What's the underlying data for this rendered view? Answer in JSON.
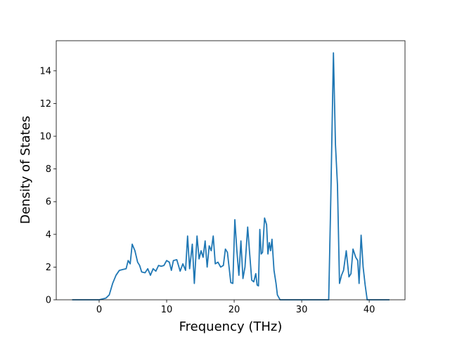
{
  "chart_data": {
    "type": "line",
    "xlabel": "Frequency (THz)",
    "ylabel": "Density of States",
    "xlim": [
      -6.35,
      45.3
    ],
    "ylim": [
      0,
      15.84
    ],
    "xticks": [
      0,
      10,
      20,
      30,
      40
    ],
    "yticks": [
      0,
      2,
      4,
      6,
      8,
      10,
      12,
      14
    ],
    "color": "#1f77b4",
    "x": [
      -4,
      0,
      1,
      1.5,
      2,
      2.5,
      3,
      3.5,
      4,
      4.3,
      4.6,
      4.9,
      5.3,
      5.7,
      6,
      6.3,
      6.8,
      7.2,
      7.6,
      8,
      8.4,
      8.8,
      9.2,
      9.6,
      10,
      10.4,
      10.7,
      11,
      11.5,
      12,
      12.4,
      12.8,
      13.1,
      13.4,
      13.8,
      14.1,
      14.5,
      14.8,
      15.1,
      15.4,
      15.7,
      16,
      16.3,
      16.6,
      16.9,
      17.2,
      17.6,
      18,
      18.4,
      18.7,
      19,
      19.5,
      19.8,
      20.1,
      20.4,
      20.7,
      21,
      21.3,
      21.6,
      22,
      22.3,
      22.6,
      22.9,
      23.2,
      23.4,
      23.6,
      23.8,
      24,
      24.2,
      24.5,
      24.8,
      25,
      25.2,
      25.4,
      25.6,
      25.9,
      26.2,
      26.4,
      26.8,
      34,
      34.3,
      34.7,
      35,
      35.3,
      35.6,
      35.9,
      36.2,
      36.6,
      37,
      37.3,
      37.6,
      38,
      38.3,
      38.5,
      38.8,
      39.1,
      39.4,
      39.7,
      43
    ],
    "values": [
      0,
      0,
      0.1,
      0.3,
      1.0,
      1.5,
      1.8,
      1.85,
      1.9,
      2.4,
      2.2,
      3.4,
      3.0,
      2.3,
      2.1,
      1.7,
      1.65,
      1.9,
      1.5,
      1.9,
      1.75,
      2.1,
      2.05,
      2.1,
      2.4,
      2.3,
      1.8,
      2.4,
      2.45,
      1.75,
      2.2,
      1.8,
      3.9,
      1.9,
      3.4,
      1.0,
      3.9,
      2.5,
      3.0,
      2.6,
      3.6,
      2.0,
      3.3,
      3.0,
      3.9,
      2.2,
      2.3,
      2.0,
      2.1,
      3.1,
      2.9,
      1.05,
      1.0,
      4.9,
      3.0,
      1.5,
      3.6,
      1.3,
      2.0,
      4.45,
      2.8,
      1.2,
      1.1,
      1.6,
      0.9,
      0.85,
      4.3,
      2.8,
      2.9,
      5.0,
      4.6,
      2.8,
      3.5,
      3.0,
      3.7,
      1.8,
      1.0,
      0.3,
      0,
      0,
      6,
      15.1,
      9.5,
      7.0,
      1.0,
      1.5,
      1.8,
      3.0,
      1.4,
      1.6,
      3.1,
      2.6,
      2.4,
      1.0,
      3.95,
      2.0,
      0.9,
      0,
      0
    ]
  }
}
